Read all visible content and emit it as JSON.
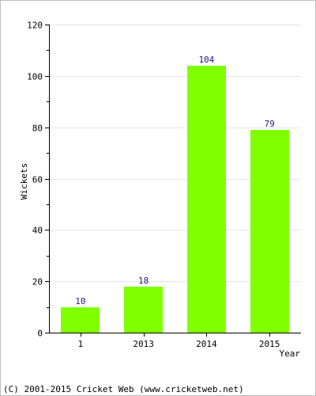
{
  "chart_data": {
    "type": "bar",
    "categories": [
      "1",
      "2013",
      "2014",
      "2015"
    ],
    "values": [
      10,
      18,
      104,
      79
    ],
    "title": "",
    "xlabel": "Year",
    "ylabel": "Wickets",
    "ylim": [
      0,
      120
    ],
    "yticks": [
      0,
      20,
      40,
      60,
      80,
      100,
      120
    ],
    "grid": true,
    "bar_color": "#80ff00",
    "label_color": "#1a1a7a"
  },
  "footer": {
    "copyright": "(C) 2001-2015 Cricket Web (www.cricketweb.net)"
  }
}
